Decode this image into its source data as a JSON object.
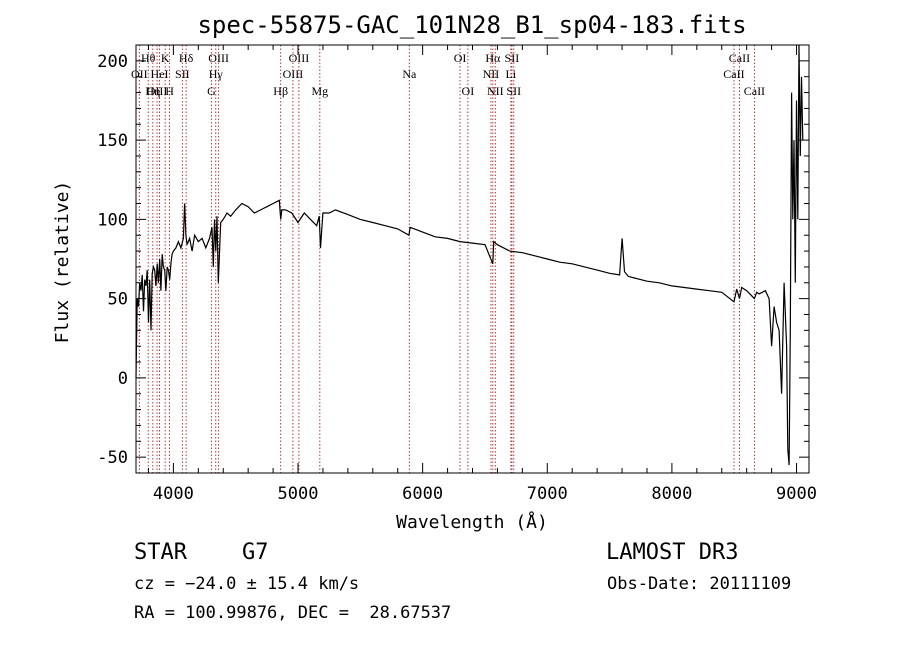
{
  "chart_data": {
    "type": "line",
    "title": "spec-55875-GAC_101N28_B1_sp04-183.fits",
    "xlabel": "Wavelength (Å)",
    "ylabel": "Flux (relative)",
    "xlim": [
      3700,
      9100
    ],
    "ylim": [
      -60,
      210
    ],
    "xticks": [
      4000,
      5000,
      6000,
      7000,
      8000,
      9000
    ],
    "yticks": [
      -50,
      0,
      50,
      100,
      150,
      200
    ],
    "series": [
      {
        "name": "flux",
        "x": [
          3700,
          3710,
          3720,
          3730,
          3740,
          3750,
          3760,
          3770,
          3780,
          3790,
          3800,
          3810,
          3820,
          3830,
          3840,
          3850,
          3860,
          3870,
          3880,
          3890,
          3900,
          3910,
          3920,
          3930,
          3940,
          3950,
          3960,
          3970,
          3980,
          3990,
          4000,
          4020,
          4040,
          4060,
          4080,
          4090,
          4100,
          4110,
          4130,
          4150,
          4170,
          4200,
          4230,
          4260,
          4290,
          4310,
          4320,
          4330,
          4340,
          4350,
          4360,
          4380,
          4400,
          4430,
          4460,
          4500,
          4550,
          4600,
          4650,
          4700,
          4750,
          4800,
          4850,
          4861,
          4870,
          4900,
          4950,
          5000,
          5050,
          5100,
          5150,
          5170,
          5180,
          5200,
          5250,
          5300,
          5400,
          5500,
          5600,
          5700,
          5800,
          5890,
          5900,
          6000,
          6100,
          6200,
          6300,
          6400,
          6500,
          6563,
          6570,
          6600,
          6700,
          6800,
          6900,
          7000,
          7100,
          7200,
          7300,
          7400,
          7500,
          7580,
          7600,
          7620,
          7650,
          7700,
          7800,
          7900,
          8000,
          8100,
          8200,
          8300,
          8400,
          8498,
          8520,
          8542,
          8560,
          8600,
          8662,
          8680,
          8700,
          8750,
          8780,
          8800,
          8820,
          8840,
          8860,
          8880,
          8900,
          8920,
          8930,
          8940,
          8950,
          8960,
          8970,
          8980,
          8990,
          9000,
          9010,
          9020,
          9030,
          9040,
          9050
        ],
        "y": [
          0,
          50,
          45,
          60,
          55,
          65,
          42,
          62,
          58,
          68,
          35,
          62,
          30,
          66,
          70,
          68,
          58,
          72,
          60,
          75,
          55,
          78,
          70,
          68,
          55,
          70,
          68,
          62,
          72,
          78,
          80,
          82,
          86,
          82,
          88,
          110,
          90,
          84,
          88,
          80,
          90,
          86,
          88,
          82,
          88,
          95,
          70,
          100,
          80,
          102,
          60,
          98,
          100,
          104,
          102,
          106,
          110,
          108,
          104,
          106,
          108,
          110,
          112,
          100,
          106,
          106,
          104,
          98,
          104,
          100,
          96,
          102,
          82,
          104,
          104,
          106,
          103,
          100,
          98,
          96,
          94,
          90,
          95,
          92,
          89,
          88,
          86,
          85,
          84,
          72,
          86,
          84,
          80,
          79,
          77,
          75,
          73,
          72,
          70,
          68,
          66,
          65,
          88,
          67,
          64,
          63,
          61,
          60,
          58,
          57,
          56,
          55,
          54,
          48,
          56,
          50,
          57,
          55,
          50,
          54,
          53,
          55,
          50,
          20,
          45,
          35,
          30,
          -10,
          60,
          20,
          -45,
          -55,
          30,
          180,
          100,
          150,
          60,
          175,
          100,
          210,
          140,
          190,
          150
        ]
      }
    ],
    "line_markers": [
      {
        "label": "Hθ",
        "x": 3798,
        "row": 1
      },
      {
        "label": "OII",
        "x": 3727,
        "row": 2
      },
      {
        "label": "OIII",
        "x": 3869,
        "row": 3
      },
      {
        "label": "K",
        "x": 3934,
        "row": 1
      },
      {
        "label": "HeI",
        "x": 3889,
        "row": 2
      },
      {
        "label": "Hη",
        "x": 3835,
        "row": 3
      },
      {
        "label": "Hδ",
        "x": 4102,
        "row": 1
      },
      {
        "label": "SII",
        "x": 4072,
        "row": 2
      },
      {
        "label": "H",
        "x": 3969,
        "row": 3
      },
      {
        "label": "OIII",
        "x": 4363,
        "row": 1
      },
      {
        "label": "Hγ",
        "x": 4340,
        "row": 2
      },
      {
        "label": "G",
        "x": 4305,
        "row": 3
      },
      {
        "label": "OIII",
        "x": 5007,
        "row": 1
      },
      {
        "label": "OIII",
        "x": 4959,
        "row": 2
      },
      {
        "label": "Hβ",
        "x": 4861,
        "row": 3
      },
      {
        "label": "Mg",
        "x": 5175,
        "row": 3
      },
      {
        "label": "Na",
        "x": 5893,
        "row": 2
      },
      {
        "label": "OI",
        "x": 6300,
        "row": 1
      },
      {
        "label": "OI",
        "x": 6363,
        "row": 3
      },
      {
        "label": "Hα",
        "x": 6563,
        "row": 1
      },
      {
        "label": "NII",
        "x": 6548,
        "row": 2
      },
      {
        "label": "NII",
        "x": 6583,
        "row": 3
      },
      {
        "label": "SII",
        "x": 6716,
        "row": 1
      },
      {
        "label": "Li",
        "x": 6708,
        "row": 2
      },
      {
        "label": "SII",
        "x": 6731,
        "row": 3
      },
      {
        "label": "CaII",
        "x": 8542,
        "row": 1
      },
      {
        "label": "CaII",
        "x": 8498,
        "row": 2
      },
      {
        "label": "CaII",
        "x": 8662,
        "row": 3
      }
    ]
  },
  "info": {
    "object_type": "STAR",
    "subclass": "G7",
    "survey": "LAMOST DR3",
    "cz": "cz = −24.0 ± 15.4 km/s",
    "obs_date": "Obs-Date: 20111109",
    "coords": "RA = 100.99876, DEC =  28.67537"
  }
}
